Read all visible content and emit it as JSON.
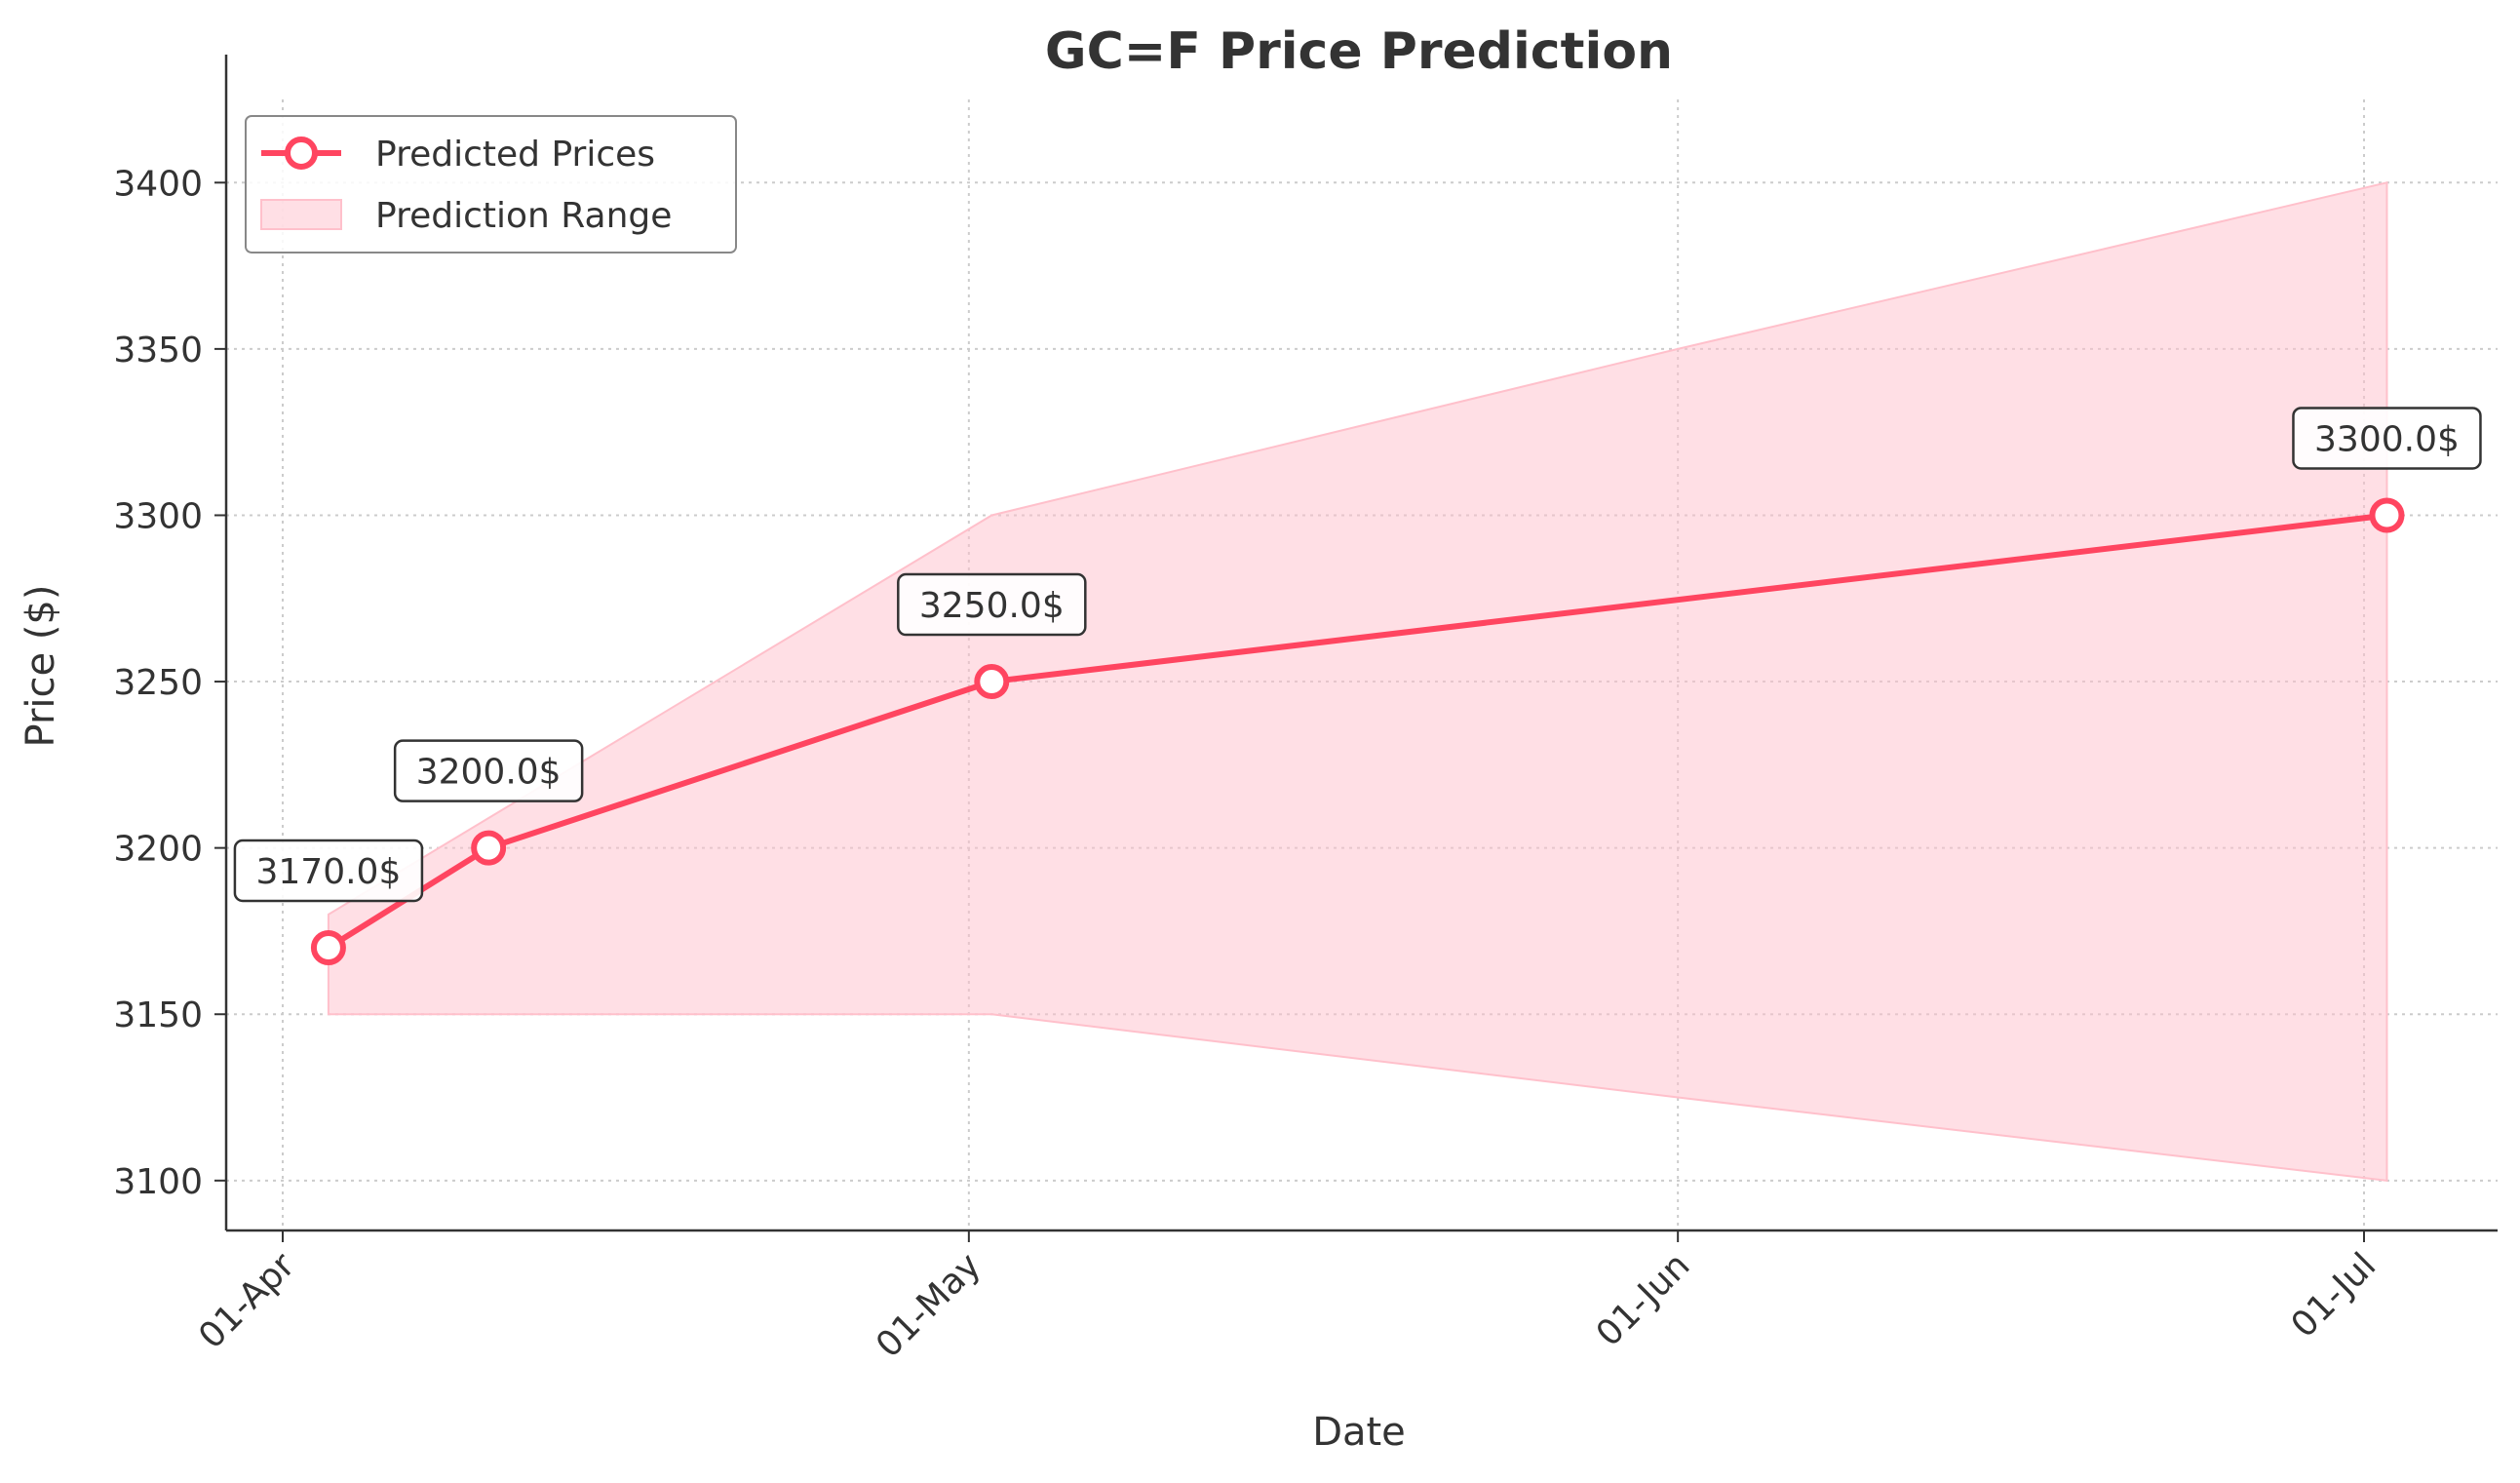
{
  "chart_data": {
    "type": "line",
    "title": "GC=F Price Prediction",
    "xlabel": "Date",
    "ylabel": "Price ($)",
    "x_tick_labels": [
      "01-Apr",
      "01-May",
      "01-Jun",
      "01-Jul"
    ],
    "y_tick_labels": [
      "3100",
      "3150",
      "3200",
      "3250",
      "3300",
      "3350",
      "3400"
    ],
    "ylim": [
      3085,
      3425
    ],
    "grid": true,
    "legend_position": "top-left",
    "colors": {
      "line": "#ff4560",
      "range_fill": "#ffc0cb",
      "text": "#333333",
      "axis": "#333333",
      "grid": "#cccccc"
    },
    "series": [
      {
        "name": "Predicted Prices",
        "x": [
          "2025-04-03",
          "2025-04-10",
          "2025-05-02",
          "2025-07-02"
        ],
        "values": [
          3170.0,
          3200.0,
          3250.0,
          3300.0
        ],
        "labels": [
          "3170.0$",
          "3200.0$",
          "3250.0$",
          "3300.0$"
        ]
      }
    ],
    "range": {
      "name": "Prediction Range",
      "x": [
        "2025-04-03",
        "2025-05-02",
        "2025-06-01",
        "2025-07-02"
      ],
      "upper": [
        3180,
        3300,
        3350,
        3400
      ],
      "lower": [
        3150,
        3150,
        3125,
        3100
      ]
    }
  }
}
